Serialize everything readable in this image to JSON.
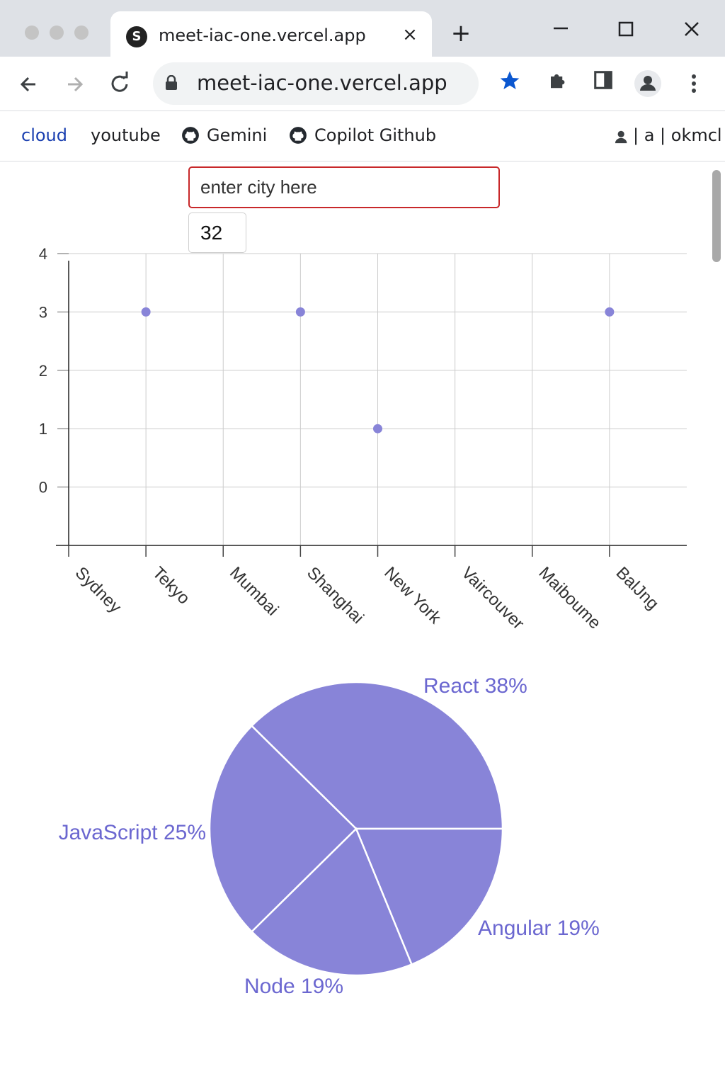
{
  "browser": {
    "tab_title": "meet-iac-one.vercel.app",
    "url": "meet-iac-one.vercel.app",
    "new_tab_symbol": "+",
    "close_symbol": "×",
    "accent_color": "#0b57d0"
  },
  "bookmarks": [
    {
      "label": "cloud",
      "color": "#1a3fb0",
      "icon": ""
    },
    {
      "label": "youtube",
      "color": "#202124",
      "icon": ""
    },
    {
      "label": "Gemini",
      "color": "#202124",
      "icon": "github-icon"
    },
    {
      "label": "Copilot Github",
      "color": "#202124",
      "icon": "github-icon"
    }
  ],
  "bookmarks_right": "| a | okmcl",
  "form": {
    "city_placeholder": "enter city here",
    "number_value": "32"
  },
  "chart_data": [
    {
      "type": "scatter",
      "categories": [
        "Sydney",
        "Tekyo",
        "Mumbai",
        "Shanghai",
        "New York",
        "Vaircouver",
        "Maiboume",
        "BalJng"
      ],
      "points": [
        {
          "x": "Tekyo",
          "y": 3
        },
        {
          "x": "Shanghai",
          "y": 3
        },
        {
          "x": "New York",
          "y": 1
        },
        {
          "x": "BalJng",
          "y": 3
        }
      ],
      "yticks": [
        0,
        1,
        2,
        3,
        4
      ],
      "ylim": [
        -1,
        4
      ],
      "grid": true,
      "color": "#8884d8"
    },
    {
      "type": "pie",
      "slices": [
        {
          "label": "React",
          "percent": 38
        },
        {
          "label": "Angular",
          "percent": 19
        },
        {
          "label": "Node",
          "percent": 19
        },
        {
          "label": "JavaScript",
          "percent": 25
        }
      ],
      "labels": [
        "React 38%",
        "Angular 19%",
        "Node 19%",
        "JavaScript 25%"
      ],
      "color": "#8884d8",
      "label_color": "#6b67d0"
    }
  ]
}
